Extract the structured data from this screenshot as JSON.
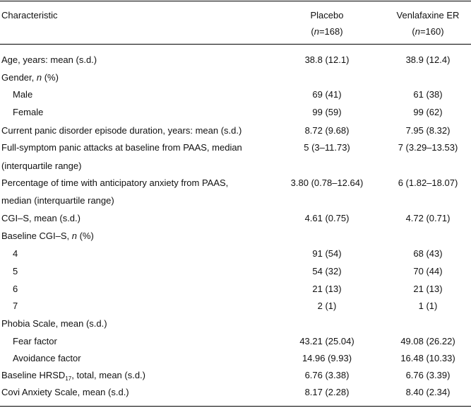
{
  "header": {
    "characteristic": "Characteristic",
    "placebo": {
      "name": "Placebo",
      "n": [
        "(",
        "n",
        "=168)"
      ]
    },
    "venlafaxine": {
      "name": "Venlafaxine ER",
      "n": [
        "(",
        "n",
        "=160)"
      ]
    }
  },
  "rows": [
    {
      "label": "Age, years: mean (s.d.)",
      "placebo": "38.8 (12.1)",
      "venlafaxine": "38.9 (12.4)"
    },
    {
      "label": [
        "Gender, ",
        "n",
        " (%)"
      ]
    },
    {
      "label": "Male",
      "placebo": "69 (41)",
      "venlafaxine": "61 (38)"
    },
    {
      "label": "Female",
      "placebo": "99 (59)",
      "venlafaxine": "99 (62)"
    },
    {
      "label": "Current panic disorder episode duration, years: mean (s.d.)",
      "placebo": "8.72 (9.68)",
      "venlafaxine": "7.95 (8.32)"
    },
    {
      "label": [
        "Full-symptom panic attacks at baseline from PAAS, median",
        "(interquartile range)"
      ],
      "placebo": "5 (3–11.73)",
      "venlafaxine": "7 (3.29–13.53)"
    },
    {
      "label": [
        "Percentage of time with anticipatory anxiety from PAAS,",
        "median (interquartile range)"
      ],
      "placebo": "3.80 (0.78–12.64)",
      "venlafaxine": "6 (1.82–18.07)"
    },
    {
      "label": "CGI–S, mean (s.d.)",
      "placebo": "4.61 (0.75)",
      "venlafaxine": "4.72 (0.71)"
    },
    {
      "label": [
        "Baseline CGI–S, ",
        "n",
        " (%)"
      ]
    },
    {
      "label": "4",
      "placebo": "91 (54)",
      "venlafaxine": "68 (43)"
    },
    {
      "label": "5",
      "placebo": "54 (32)",
      "venlafaxine": "70 (44)"
    },
    {
      "label": "6",
      "placebo": "21 (13)",
      "venlafaxine": "21 (13)"
    },
    {
      "label": "7",
      "placebo": "2 (1)",
      "venlafaxine": "1 (1)"
    },
    {
      "label": "Phobia Scale, mean (s.d.)"
    },
    {
      "label": "Fear factor",
      "placebo": "43.21 (25.04)",
      "venlafaxine": "49.08 (26.22)"
    },
    {
      "label": "Avoidance factor",
      "placebo": "14.96 (9.93)",
      "venlafaxine": "16.48 (10.33)"
    },
    {
      "label": [
        "Baseline HRSD",
        "17",
        ", total, mean (s.d.)"
      ],
      "placebo": "6.76 (3.38)",
      "venlafaxine": "6.76 (3.39)"
    },
    {
      "label": "Covi Anxiety Scale, mean (s.d.)",
      "placebo": "8.17 (2.28)",
      "venlafaxine": "8.40 (2.34)"
    }
  ]
}
